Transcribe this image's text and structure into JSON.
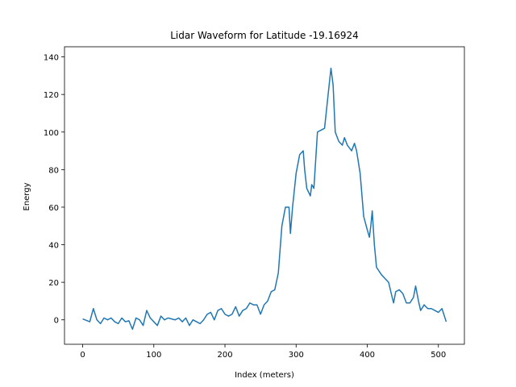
{
  "chart_data": {
    "type": "line",
    "title": "Lidar Waveform for Latitude -19.16924",
    "x_label": "Index (meters)",
    "y_label": "Energy",
    "x": [
      0,
      10,
      15,
      20,
      25,
      30,
      35,
      40,
      45,
      50,
      55,
      60,
      65,
      70,
      75,
      80,
      85,
      90,
      95,
      100,
      105,
      110,
      115,
      120,
      130,
      135,
      140,
      145,
      150,
      155,
      160,
      165,
      170,
      175,
      180,
      185,
      190,
      195,
      200,
      205,
      210,
      215,
      220,
      225,
      230,
      235,
      240,
      245,
      250,
      255,
      260,
      265,
      270,
      275,
      280,
      285,
      290,
      292,
      295,
      300,
      305,
      310,
      312,
      315,
      320,
      322,
      325,
      330,
      335,
      340,
      345,
      349,
      352,
      355,
      360,
      365,
      368,
      372,
      378,
      382,
      385,
      390,
      395,
      400,
      403,
      405,
      407,
      410,
      413,
      420,
      425,
      430,
      435,
      437,
      440,
      445,
      450,
      455,
      460,
      465,
      468,
      472,
      475,
      480,
      485,
      490,
      495,
      500,
      505,
      511
    ],
    "series": [
      {
        "name": "waveform",
        "color": "#1f77b4",
        "values": [
          0.5,
          -1,
          6,
          0,
          -2,
          1,
          0,
          1,
          -1,
          -2,
          1,
          -1,
          -0.5,
          -5,
          1,
          0,
          -3,
          5,
          1,
          -1,
          -3,
          2,
          0,
          1,
          0,
          1,
          -1,
          1,
          -3,
          0,
          -1,
          -2,
          0,
          3,
          4,
          0,
          5,
          6,
          3,
          2,
          3,
          7,
          2,
          5,
          6,
          9,
          8,
          8,
          3,
          8,
          10,
          15,
          16,
          25,
          50,
          60,
          60,
          46,
          60,
          78,
          88,
          90,
          80,
          70,
          66,
          72,
          70,
          100,
          101,
          102,
          120,
          134,
          125,
          100,
          95,
          93,
          97,
          93,
          90,
          94,
          90,
          78,
          55,
          48,
          44,
          50,
          58,
          40,
          28,
          24,
          22,
          20,
          12,
          9,
          15,
          16,
          14,
          9,
          9,
          12,
          18,
          10,
          5,
          8,
          6,
          6,
          5,
          4,
          6,
          -1
        ]
      }
    ],
    "xlim": [
      -25.55,
      536.55
    ],
    "ylim": [
      -13,
      145.4
    ],
    "xticks": [
      0,
      100,
      200,
      300,
      400,
      500
    ],
    "yticks": [
      0,
      20,
      40,
      60,
      80,
      100,
      120,
      140
    ]
  }
}
